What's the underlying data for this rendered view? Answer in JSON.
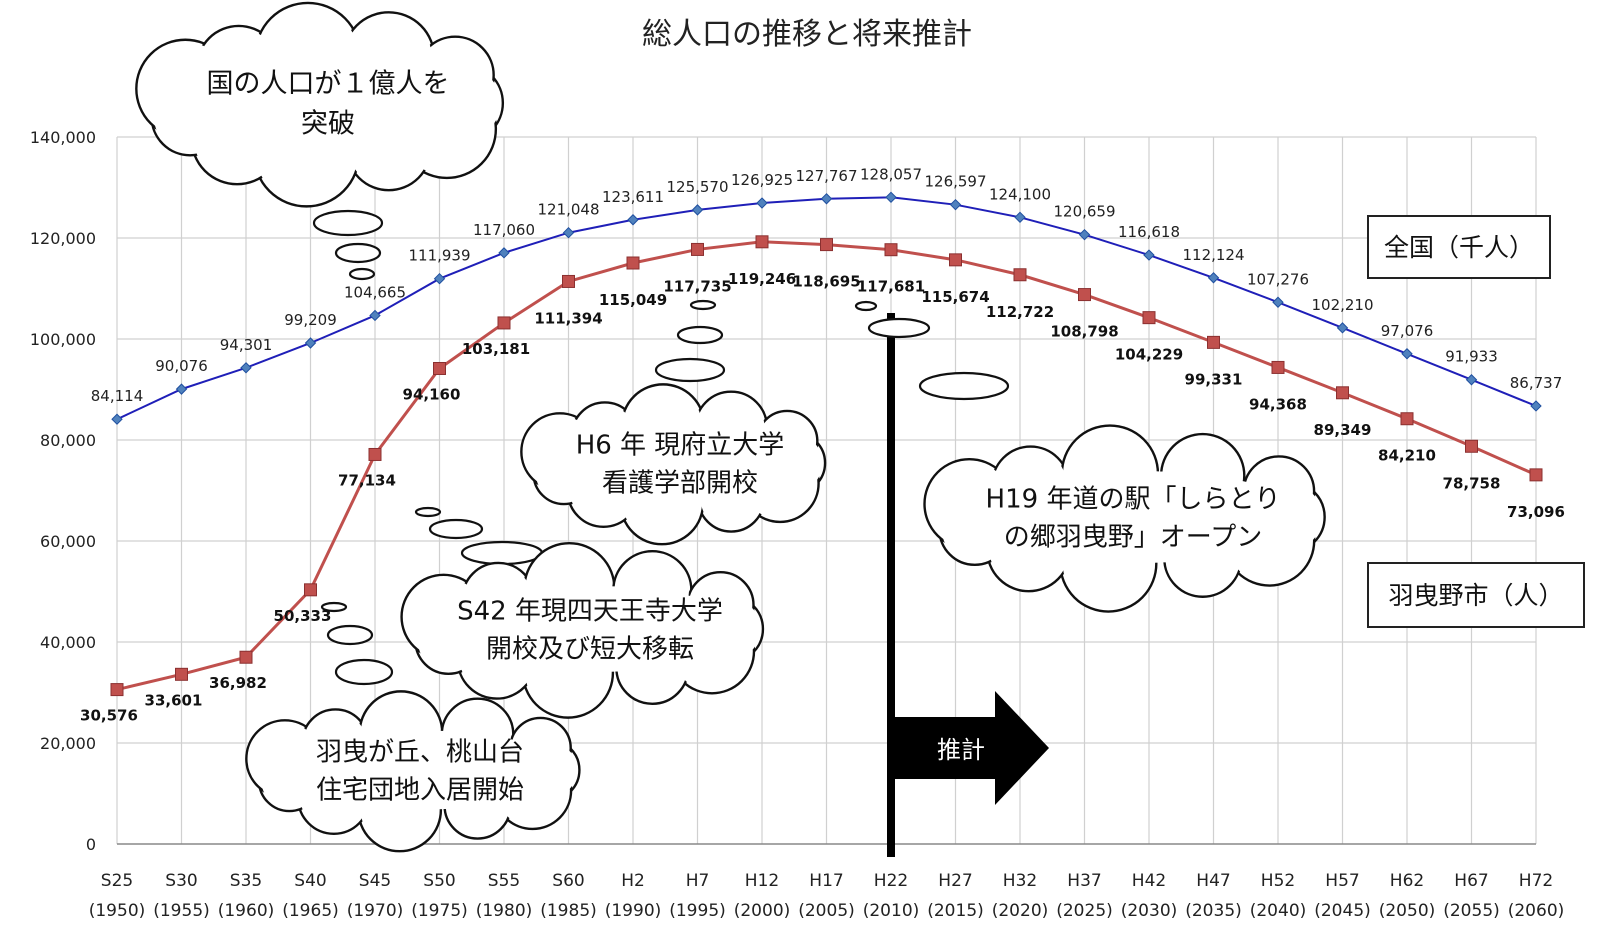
{
  "chart_data": {
    "type": "line",
    "title": "総人口の推移と将来推計",
    "ylim": [
      0,
      140000
    ],
    "yticks": [
      "0",
      "20,000",
      "40,000",
      "60,000",
      "80,000",
      "100,000",
      "120,000",
      "140,000"
    ],
    "grid": true,
    "categories": [
      {
        "era": "S25",
        "year": "(1950)"
      },
      {
        "era": "S30",
        "year": "(1955)"
      },
      {
        "era": "S35",
        "year": "(1960)"
      },
      {
        "era": "S40",
        "year": "(1965)"
      },
      {
        "era": "S45",
        "year": "(1970)"
      },
      {
        "era": "S50",
        "year": "(1975)"
      },
      {
        "era": "S55",
        "year": "(1980)"
      },
      {
        "era": "S60",
        "year": "(1985)"
      },
      {
        "era": "H2",
        "year": "(1990)"
      },
      {
        "era": "H7",
        "year": "(1995)"
      },
      {
        "era": "H12",
        "year": "(2000)"
      },
      {
        "era": "H17",
        "year": "(2005)"
      },
      {
        "era": "H22",
        "year": "(2010)"
      },
      {
        "era": "H27",
        "year": "(2015)"
      },
      {
        "era": "H32",
        "year": "(2020)"
      },
      {
        "era": "H37",
        "year": "(2025)"
      },
      {
        "era": "H42",
        "year": "(2030)"
      },
      {
        "era": "H47",
        "year": "(2035)"
      },
      {
        "era": "H52",
        "year": "(2040)"
      },
      {
        "era": "H57",
        "year": "(2045)"
      },
      {
        "era": "H62",
        "year": "(2050)"
      },
      {
        "era": "H67",
        "year": "(2055)"
      },
      {
        "era": "H72",
        "year": "(2060)"
      }
    ],
    "series": [
      {
        "name": "全国（千人）",
        "color": "#1f1fb8",
        "marker": "diamond",
        "values": [
          84114,
          90076,
          94301,
          99209,
          104665,
          111939,
          117060,
          121048,
          123611,
          125570,
          126925,
          127767,
          128057,
          126597,
          124100,
          120659,
          116618,
          112124,
          107276,
          102210,
          97076,
          91933,
          86737
        ],
        "labels": [
          "84,114",
          "90,076",
          "94,301",
          "99,209",
          "104,665",
          "111,939",
          "117,060",
          "121,048",
          "123,611",
          "125,570",
          "126,925",
          "127,767",
          "128,057",
          "126,597",
          "124,100",
          "120,659",
          "116,618",
          "112,124",
          "107,276",
          "102,210",
          "97,076",
          "91,933",
          "86,737"
        ]
      },
      {
        "name": "羽曳野市（人）",
        "color": "#c0504d",
        "marker": "square",
        "values": [
          30576,
          33601,
          36982,
          50333,
          77134,
          94160,
          103181,
          111394,
          115049,
          117735,
          119246,
          118695,
          117681,
          115674,
          112722,
          108798,
          104229,
          99331,
          94368,
          89349,
          84210,
          78758,
          73096
        ],
        "labels": [
          "30,576",
          "33,601",
          "36,982",
          "50,333",
          "77,134",
          "94,160",
          "103,181",
          "111,394",
          "115,049",
          "117,735",
          "119,246",
          "118,695",
          "117,681",
          "115,674",
          "112,722",
          "108,798",
          "104,229",
          "99,331",
          "94,368",
          "89,349",
          "84,210",
          "78,758",
          "73,096"
        ]
      }
    ],
    "projection_marker": {
      "category": "H22",
      "label": "推計"
    },
    "annotations": [
      {
        "id": "100m",
        "lines": [
          "国の人口が１億人を",
          "突破"
        ]
      },
      {
        "id": "h6",
        "lines": [
          "H6 年  現府立大学",
          "看護学部開校"
        ]
      },
      {
        "id": "h19",
        "lines": [
          "H19 年道の駅「しらとり",
          "の郷羽曳野」オープン"
        ]
      },
      {
        "id": "s42",
        "lines": [
          "S42 年現四天王寺大学",
          "開校及び短大移転"
        ]
      },
      {
        "id": "habikigaoka",
        "lines": [
          "羽曳が丘、桃山台",
          "住宅団地入居開始"
        ]
      }
    ]
  }
}
